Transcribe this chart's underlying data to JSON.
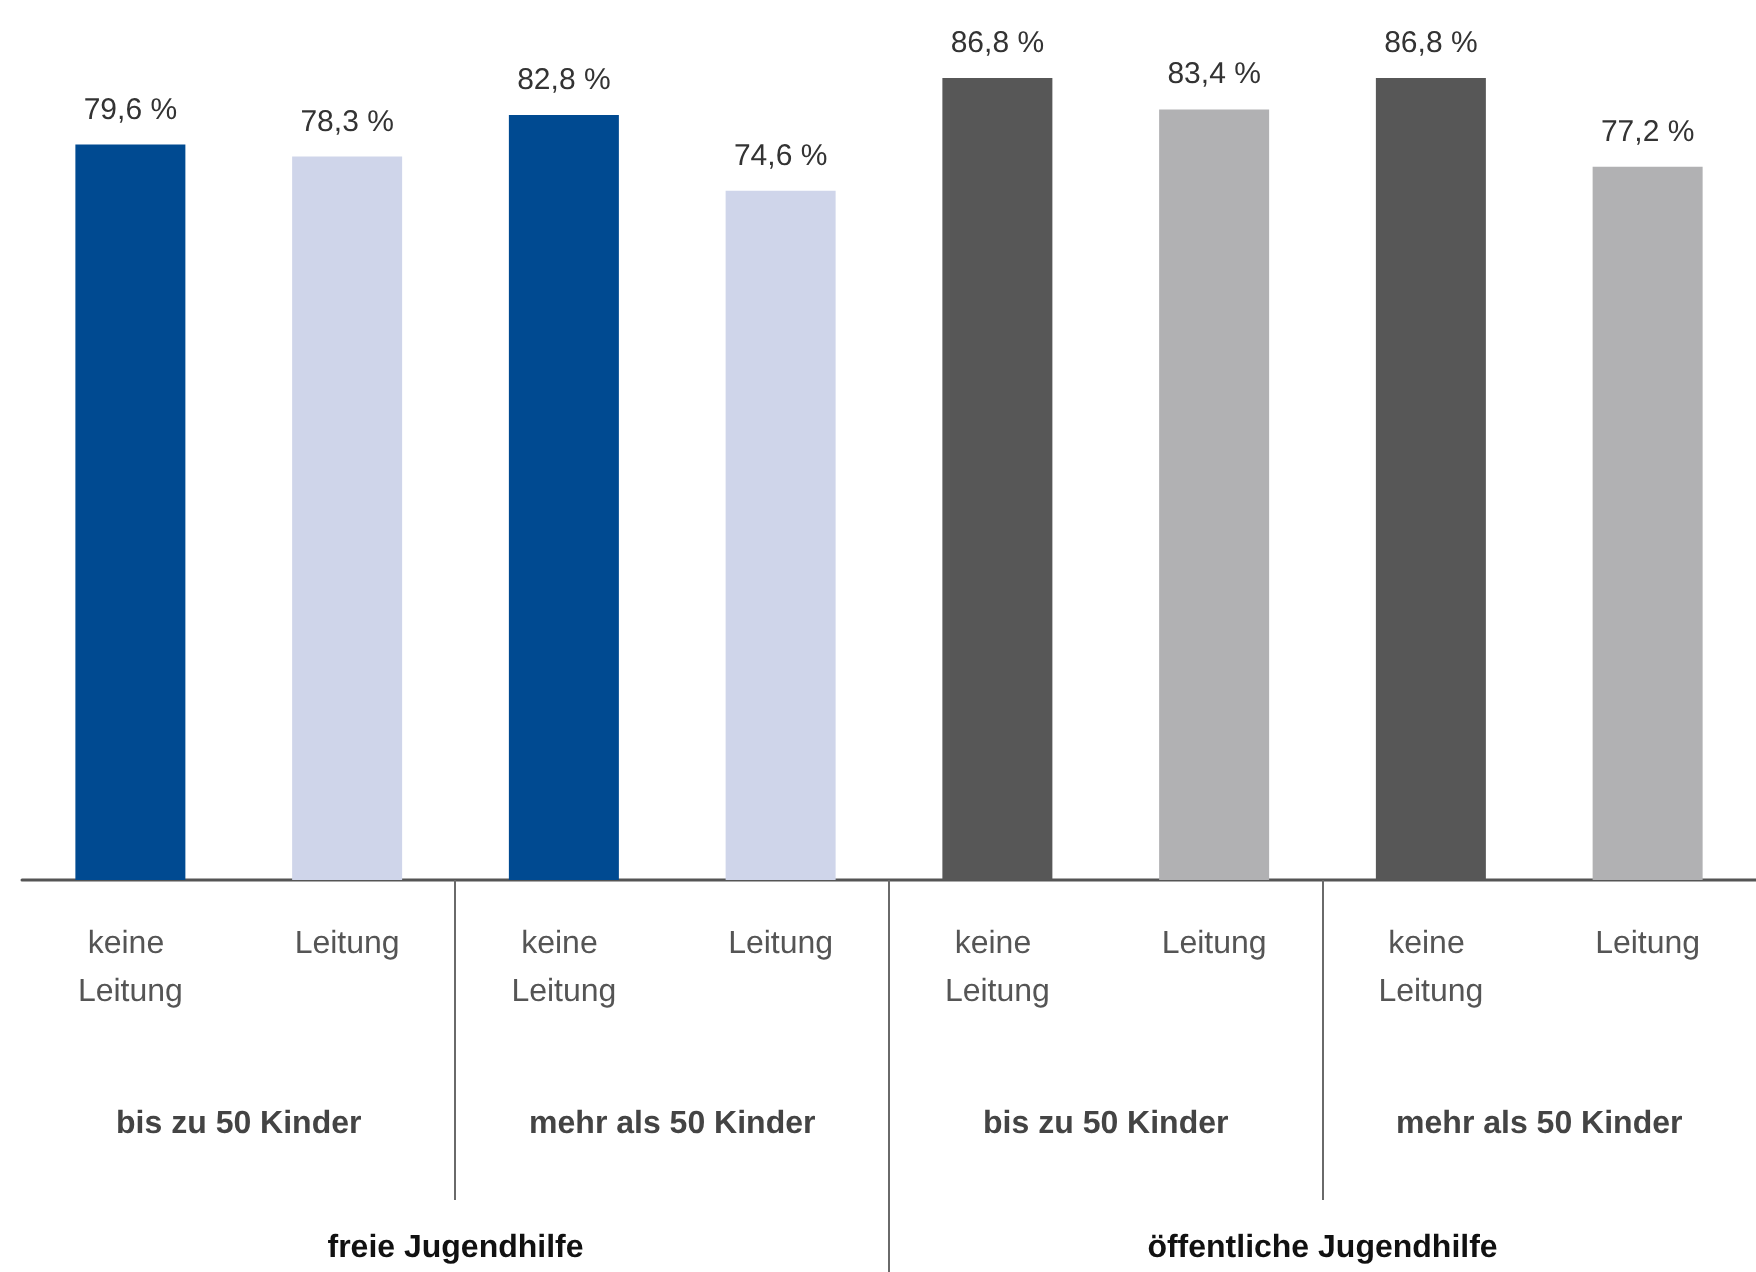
{
  "chart_data": {
    "type": "bar",
    "categories": [
      "keine Leitung",
      "Leitung",
      "keine Leitung",
      "Leitung",
      "keine Leitung",
      "Leitung",
      "keine Leitung",
      "Leitung"
    ],
    "values": [
      79.6,
      78.3,
      82.8,
      74.6,
      86.8,
      83.4,
      86.8,
      77.2
    ],
    "value_labels": [
      "79,6 %",
      "78,3 %",
      "82,8 %",
      "74,6 %",
      "86,8 %",
      "83,4 %",
      "86,8 %",
      "77,2 %"
    ],
    "colors": [
      "#004a91",
      "#cfd5ea",
      "#004a91",
      "#cfd5ea",
      "#575757",
      "#b1b1b3",
      "#575757",
      "#b1b1b3"
    ],
    "annotations": [
      "bis zu 50 Kinder",
      "mehr als 50 Kinder",
      "bis zu 50 Kinder",
      "mehr als 50 Kinder",
      "freie Jugendhilfe",
      "öffentliche Jugendhilfe"
    ]
  }
}
